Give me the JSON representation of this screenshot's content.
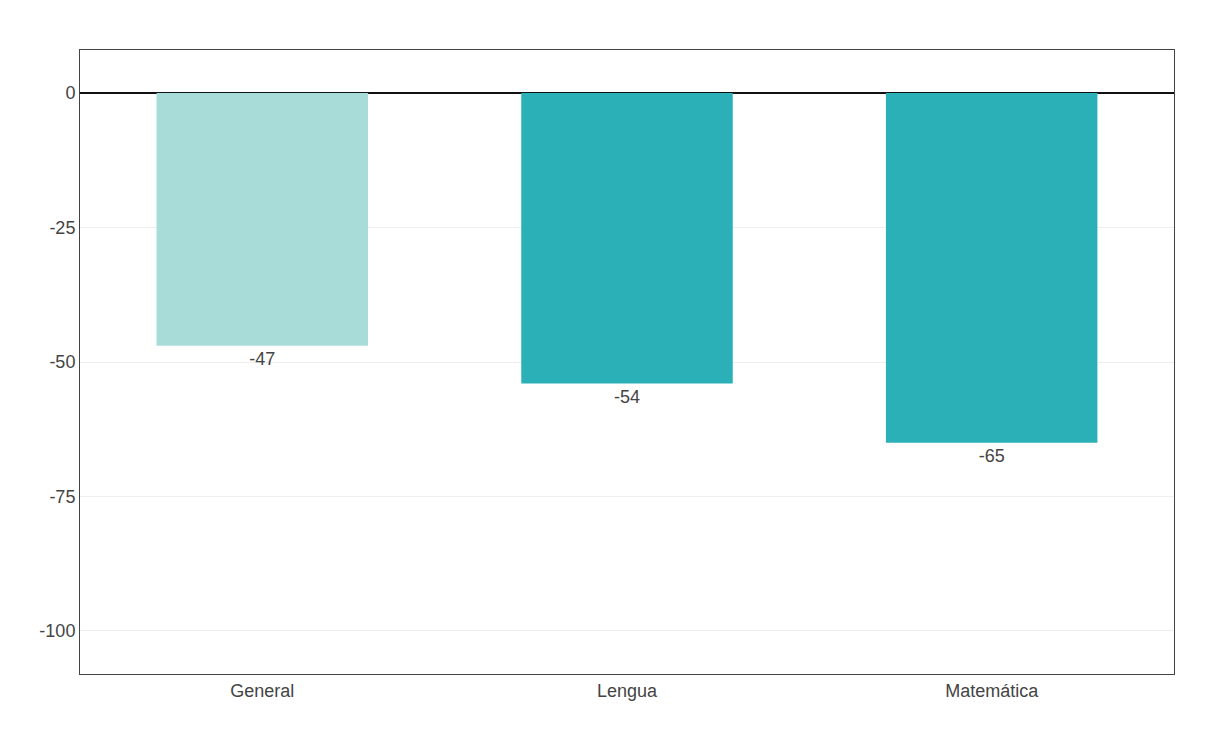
{
  "chart_data": {
    "type": "bar",
    "categories": [
      "General",
      "Lengua",
      "Matemática"
    ],
    "values": [
      -47,
      -54,
      -65
    ],
    "colors": [
      "#a8dcd9",
      "#2bb0b8",
      "#2bb0b8"
    ],
    "ylim": [
      -108,
      8
    ],
    "yticks": [
      0,
      -25,
      -50,
      -75,
      -100
    ],
    "grid": true,
    "data_labels": true
  }
}
